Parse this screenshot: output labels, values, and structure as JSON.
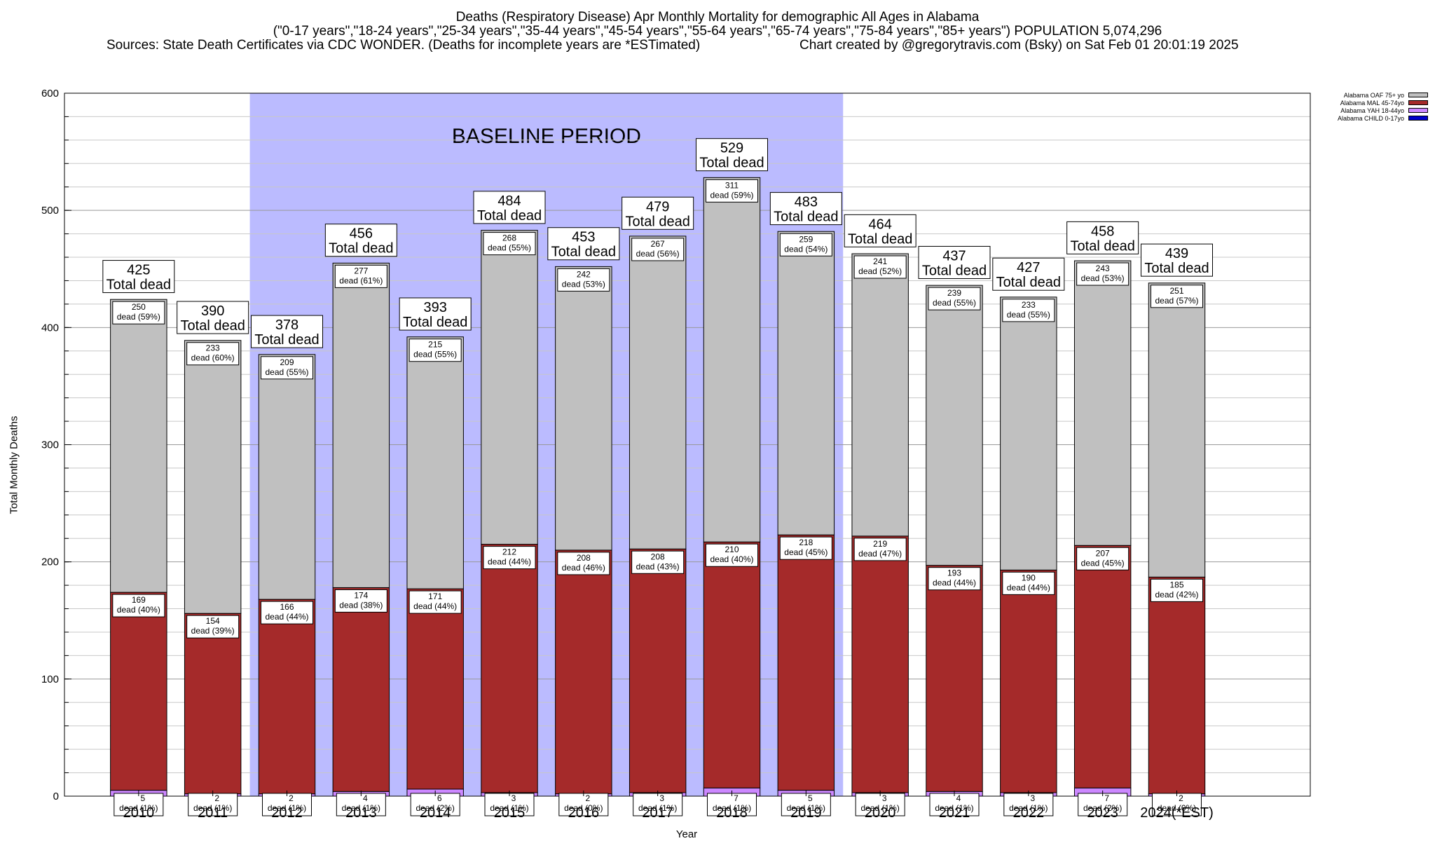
{
  "header": {
    "line1": "Deaths (Respiratory Disease) Apr Monthly Mortality for demographic All Ages in Alabama",
    "line2": "(\"0-17 years\",\"18-24 years\",\"25-34 years\",\"35-44 years\",\"45-54 years\",\"55-64 years\",\"65-74 years\",\"75-84 years\",\"85+ years\") POPULATION 5,074,296",
    "line3_left": "Sources: State Death Certificates via CDC WONDER. (Deaths for incomplete years are *ESTimated)",
    "line3_right": "Chart created by @gregorytravis.com (Bsky) on Sat Feb 01 20:01:19 2025"
  },
  "chart_data": {
    "type": "bar",
    "stacked": true,
    "categories": [
      "2010",
      "2011",
      "2012",
      "2013",
      "2014",
      "2015",
      "2016",
      "2017",
      "2018",
      "2019",
      "2020",
      "2021",
      "2022",
      "2023",
      "2024(*EST)"
    ],
    "series": [
      {
        "name": "Alabama CHILD 0-17yo",
        "color": "#0000cc",
        "values": [
          0,
          0,
          0,
          0,
          0,
          0,
          0,
          0,
          0,
          0,
          0,
          0,
          0,
          0,
          0
        ]
      },
      {
        "name": "Alabama YAH 18-44yo",
        "color": "#cc88ff",
        "values": [
          5,
          2,
          2,
          4,
          6,
          3,
          2,
          3,
          7,
          5,
          3,
          4,
          3,
          7,
          2
        ],
        "pct": [
          "1%",
          "1%",
          "1%",
          "1%",
          "2%",
          "1%",
          "0%",
          "1%",
          "1%",
          "1%",
          "1%",
          "1%",
          "1%",
          "2%",
          "0%"
        ]
      },
      {
        "name": "Alabama MAL 45-74yo",
        "color": "#a52a2a",
        "values": [
          169,
          154,
          166,
          174,
          171,
          212,
          208,
          208,
          210,
          218,
          219,
          193,
          190,
          207,
          185
        ],
        "pct": [
          "40%",
          "39%",
          "44%",
          "38%",
          "44%",
          "44%",
          "46%",
          "43%",
          "40%",
          "45%",
          "47%",
          "44%",
          "44%",
          "45%",
          "42%"
        ]
      },
      {
        "name": "Alabama OAF 75+ yo",
        "color": "#c0c0c0",
        "values": [
          250,
          233,
          209,
          277,
          215,
          268,
          242,
          267,
          311,
          259,
          241,
          239,
          233,
          243,
          251
        ],
        "pct": [
          "59%",
          "60%",
          "55%",
          "61%",
          "55%",
          "55%",
          "53%",
          "56%",
          "59%",
          "54%",
          "52%",
          "55%",
          "55%",
          "53%",
          "57%"
        ]
      }
    ],
    "totals": [
      425,
      390,
      378,
      456,
      393,
      484,
      453,
      479,
      529,
      483,
      464,
      437,
      427,
      458,
      439
    ],
    "total_label": "Total dead",
    "segment_label": "dead",
    "xlabel": "Year",
    "ylabel": "Total Monthly Deaths",
    "ylim": [
      0,
      600
    ],
    "yticks": [
      0,
      100,
      200,
      300,
      400,
      500,
      600
    ],
    "grid": true,
    "baseline": {
      "label": "BASELINE PERIOD",
      "from": "2012",
      "to": "2019",
      "color": "#bbbbff"
    },
    "legend_position": "top-right"
  }
}
